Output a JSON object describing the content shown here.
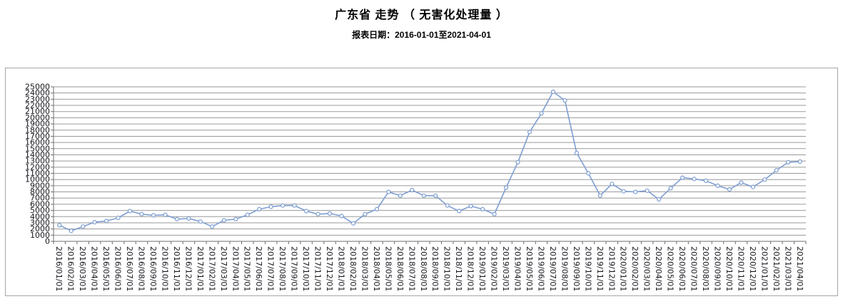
{
  "header": {
    "title": "广东省 走势 （ 无害化处理量 ）",
    "subtitle": "报表日期：2016-01-01至2021-04-01"
  },
  "chart_data": {
    "type": "line",
    "title": "广东省 走势 （ 无害化处理量 ）",
    "subtitle": "报表日期：2016-01-01至2021-04-01",
    "x": [
      "2016/01/01",
      "2016/02/01",
      "2016/03/01",
      "2016/04/01",
      "2016/05/01",
      "2016/06/01",
      "2016/07/01",
      "2016/08/01",
      "2016/09/01",
      "2016/10/01",
      "2016/11/01",
      "2016/12/01",
      "2017/01/01",
      "2017/02/01",
      "2017/03/01",
      "2017/04/01",
      "2017/05/01",
      "2017/06/01",
      "2017/07/01",
      "2017/08/01",
      "2017/09/01",
      "2017/10/01",
      "2017/11/01",
      "2017/12/01",
      "2018/01/01",
      "2018/02/01",
      "2018/03/01",
      "2018/04/01",
      "2018/05/01",
      "2018/06/01",
      "2018/07/01",
      "2018/08/01",
      "2018/09/01",
      "2018/10/01",
      "2018/11/01",
      "2018/12/01",
      "2019/01/01",
      "2019/02/01",
      "2019/03/01",
      "2019/04/01",
      "2019/05/01",
      "2019/06/01",
      "2019/07/01",
      "2019/08/01",
      "2019/09/01",
      "2019/10/01",
      "2019/11/01",
      "2019/12/01",
      "2020/01/01",
      "2020/02/01",
      "2020/03/01",
      "2020/04/01",
      "2020/05/01",
      "2020/06/01",
      "2020/07/01",
      "2020/08/01",
      "2020/09/01",
      "2020/10/01",
      "2020/11/01",
      "2020/12/01",
      "2021/01/01",
      "2021/02/01",
      "2021/03/01",
      "2021/04/01"
    ],
    "series": [
      {
        "name": "无害化处理量",
        "values": [
          2600,
          1700,
          2400,
          3100,
          3300,
          3800,
          4900,
          4400,
          4200,
          4300,
          3600,
          3700,
          3200,
          2400,
          3400,
          3600,
          4300,
          5200,
          5600,
          5800,
          5800,
          4900,
          4400,
          4500,
          4100,
          2900,
          4400,
          5200,
          8000,
          7400,
          8300,
          7400,
          7400,
          5800,
          4900,
          5700,
          5200,
          4400,
          8700,
          12800,
          17700,
          20700,
          24200,
          22800,
          14300,
          11000,
          7400,
          9300,
          8100,
          8000,
          8200,
          6800,
          8600,
          10300,
          10100,
          9800,
          9000,
          8400,
          9500,
          8800,
          10000,
          11500,
          12800,
          12900
        ]
      }
    ],
    "ylim": [
      0,
      25000
    ],
    "ytick_step": 1000,
    "grid": "horizontal",
    "legend": "none",
    "line_color": "#7e9ed2",
    "marker": "open-circle",
    "marker_fill": "#ffffff",
    "grid_color": "#9a9a9a",
    "axis_color": "#6e6e6e",
    "tick_label_color": "#16161d",
    "frame_color": "#a6a6a6"
  }
}
